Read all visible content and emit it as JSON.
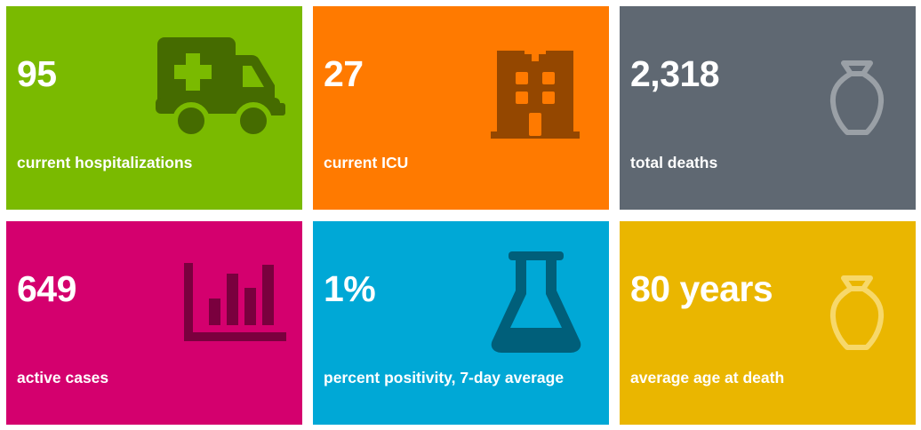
{
  "tiles": [
    {
      "value": "95",
      "label": "current hospitalizations",
      "icon": "ambulance-icon",
      "background": "#7aba00",
      "icon_color": "#456b00"
    },
    {
      "value": "27",
      "label": "current ICU",
      "icon": "hospital-building-icon",
      "background": "#ff7a00",
      "icon_color": "#944700"
    },
    {
      "value": "2,318",
      "label": "total deaths",
      "icon": "urn-icon",
      "background": "#5f6872",
      "icon_color": "#9aa0a6"
    },
    {
      "value": "649",
      "label": "active cases",
      "icon": "bar-chart-icon",
      "background": "#d4006e",
      "icon_color": "#7a003e"
    },
    {
      "value": "1%",
      "label": "percent positivity, 7-day average",
      "icon": "flask-icon",
      "background": "#00a8d6",
      "icon_color": "#005f7a"
    },
    {
      "value": "80 years",
      "label": "average age at death",
      "icon": "urn-icon",
      "background": "#eab600",
      "icon_color": "#f7d86a"
    }
  ]
}
